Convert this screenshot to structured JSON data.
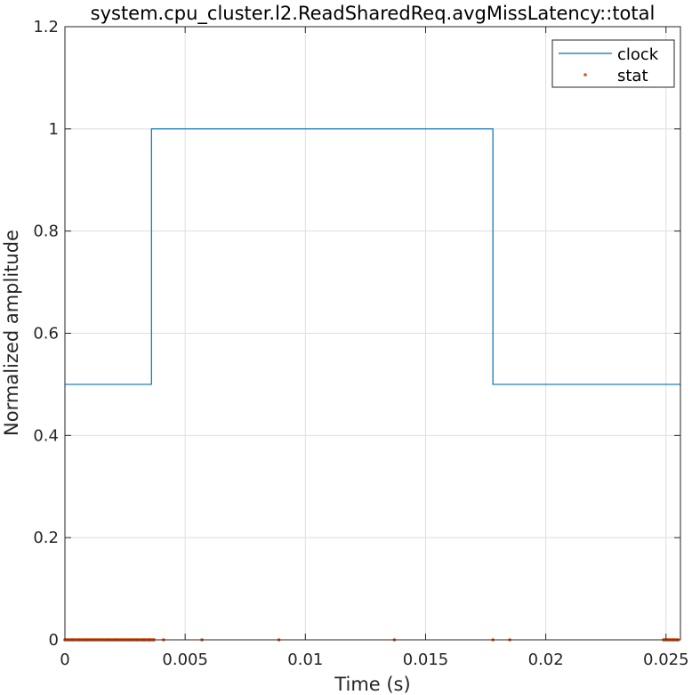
{
  "chart_data": {
    "type": "line",
    "title": "system.cpu_cluster.l2.ReadSharedReq.avgMissLatency::total",
    "xlabel": "Time (s)",
    "ylabel": "Normalized amplitude",
    "xlim": [
      0,
      0.0256
    ],
    "ylim": [
      0,
      1.2
    ],
    "x_ticks": [
      0,
      0.005,
      0.01,
      0.015,
      0.02,
      0.025
    ],
    "x_tick_labels": [
      "0",
      "0.005",
      "0.01",
      "0.015",
      "0.02",
      "0.025"
    ],
    "y_ticks": [
      0,
      0.2,
      0.4,
      0.6,
      0.8,
      1,
      1.2
    ],
    "y_tick_labels": [
      "0",
      "0.2",
      "0.4",
      "0.6",
      "0.8",
      "1",
      "1.2"
    ],
    "grid": true,
    "legend_position": "top-right",
    "series": [
      {
        "name": "clock",
        "kind": "line",
        "color": "#0072BD",
        "x": [
          0,
          0.0036,
          0.0036,
          0.0178,
          0.0178,
          0.0256
        ],
        "y": [
          0.5,
          0.5,
          1,
          1,
          0.5,
          0.5
        ]
      },
      {
        "name": "stat",
        "kind": "scatter",
        "color": "#D95319",
        "x": [
          0,
          0.0003,
          0.0006,
          0.0009,
          0.0012,
          0.0015,
          0.0018,
          0.0021,
          0.0024,
          0.0027,
          0.003,
          0.0033,
          0.0035,
          0.0037,
          0.0041,
          0.0057,
          0.0089,
          0.0137,
          0.0178,
          0.0185,
          0.0249,
          0.0251,
          0.0253,
          0.0255
        ],
        "y": [
          0,
          0,
          0,
          0,
          0,
          0,
          0,
          0,
          0,
          0,
          0,
          0,
          0,
          0,
          0,
          0,
          0,
          0,
          0,
          0,
          0,
          0,
          0,
          0
        ]
      }
    ]
  }
}
